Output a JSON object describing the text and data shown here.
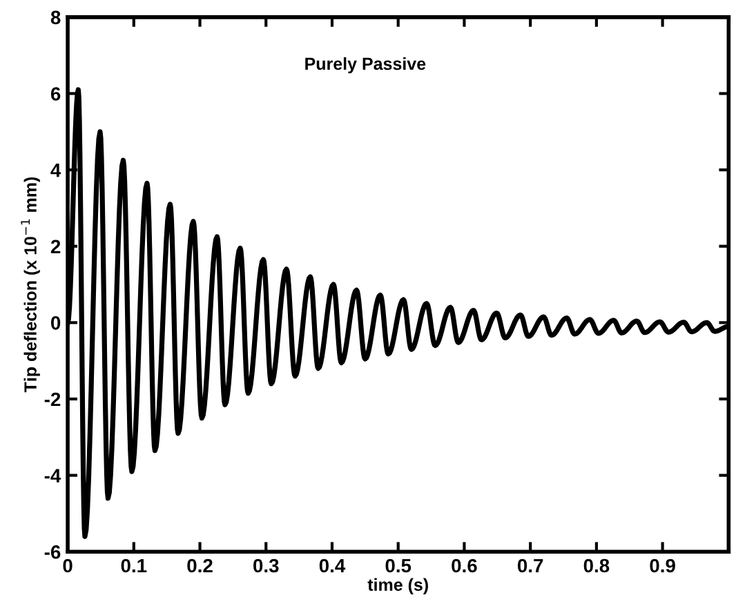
{
  "chart_data": {
    "type": "line",
    "xlabel": "time (s)",
    "ylabel": "Tip deflection (x 10$^{−1}$ mm)",
    "annotations": [
      "Purely Passive"
    ],
    "xlim": [
      0,
      1
    ],
    "xticks": [
      0,
      0.1,
      0.2,
      0.3,
      0.4,
      0.5,
      0.6,
      0.7,
      0.8,
      0.9
    ],
    "ylim": [
      -6,
      8
    ],
    "yticks": [
      -6,
      -4,
      -2,
      0,
      2,
      4,
      6,
      8
    ],
    "grid": false,
    "legend": false,
    "marker": "none",
    "line_style": "solid",
    "series": [
      {
        "color": "#000000",
        "x": [
          0,
          0.016,
          0.026,
          0.049,
          0.061,
          0.084,
          0.097,
          0.12,
          0.132,
          0.155,
          0.167,
          0.19,
          0.203,
          0.226,
          0.238,
          0.261,
          0.273,
          0.296,
          0.308,
          0.331,
          0.344,
          0.367,
          0.379,
          0.402,
          0.414,
          0.437,
          0.45,
          0.473,
          0.485,
          0.508,
          0.52,
          0.543,
          0.556,
          0.579,
          0.591,
          0.614,
          0.626,
          0.649,
          0.662,
          0.685,
          0.697,
          0.72,
          0.732,
          0.755,
          0.767,
          0.79,
          0.803,
          0.826,
          0.838,
          0.861,
          0.873,
          0.896,
          0.909,
          0.932,
          0.944,
          0.967,
          0.979,
          1.0
        ],
        "values": [
          0,
          6.1,
          -5.6,
          5.0,
          -4.6,
          4.25,
          -3.9,
          3.65,
          -3.35,
          3.1,
          -2.9,
          2.65,
          -2.5,
          2.25,
          -2.15,
          1.95,
          -1.85,
          1.65,
          -1.6,
          1.4,
          -1.4,
          1.2,
          -1.2,
          1.0,
          -1.05,
          0.85,
          -0.95,
          0.72,
          -0.82,
          0.6,
          -0.7,
          0.5,
          -0.6,
          0.4,
          -0.52,
          0.32,
          -0.45,
          0.25,
          -0.4,
          0.2,
          -0.36,
          0.15,
          -0.33,
          0.12,
          -0.3,
          0.08,
          -0.28,
          0.06,
          -0.27,
          0.04,
          -0.26,
          0.02,
          -0.25,
          0.01,
          -0.24,
          0.0,
          -0.23,
          -0.1
        ]
      }
    ]
  }
}
